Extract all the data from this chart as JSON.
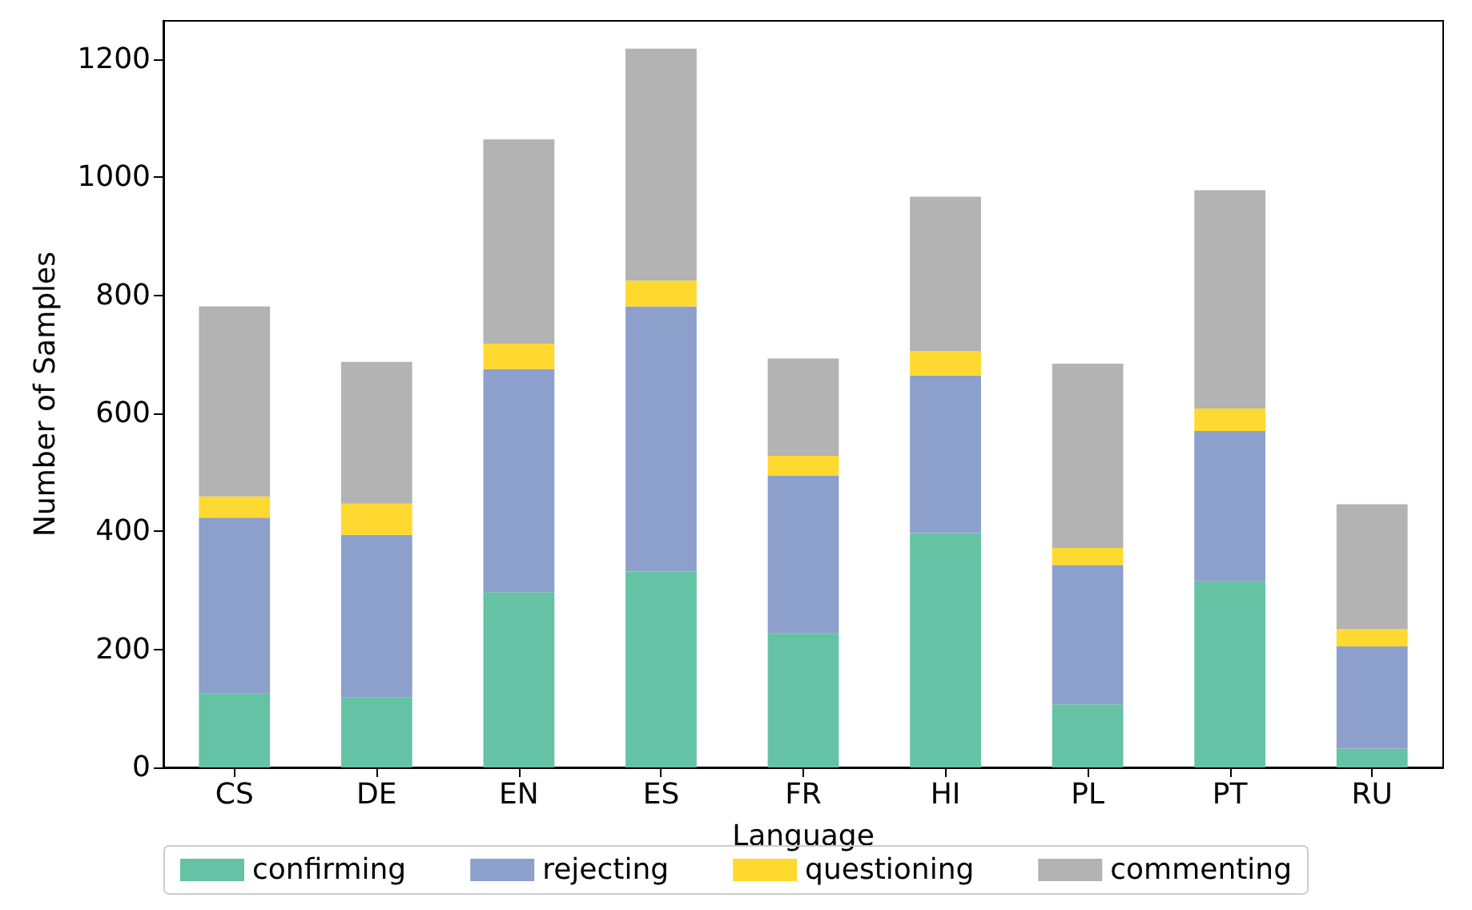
{
  "chart_data": {
    "type": "bar",
    "stacked": true,
    "xlabel": "Language",
    "ylabel": "Number of Samples",
    "categories": [
      "CS",
      "DE",
      "EN",
      "ES",
      "FR",
      "HI",
      "PL",
      "PT",
      "RU"
    ],
    "series": [
      {
        "name": "confirming",
        "color": "#66c2a5",
        "values": [
          126,
          119,
          297,
          332,
          227,
          397,
          107,
          316,
          32
        ]
      },
      {
        "name": "rejecting",
        "color": "#8da0cb",
        "values": [
          297,
          275,
          378,
          449,
          267,
          267,
          236,
          254,
          173
        ]
      },
      {
        "name": "questioning",
        "color": "#ffd92f",
        "values": [
          36,
          53,
          43,
          44,
          34,
          41,
          29,
          38,
          29
        ]
      },
      {
        "name": "commenting",
        "color": "#b3b3b3",
        "values": [
          322,
          240,
          346,
          393,
          165,
          262,
          312,
          370,
          212
        ]
      }
    ],
    "ylim": [
      0,
      1265
    ],
    "yticks": [
      0,
      200,
      400,
      600,
      800,
      1000,
      1200
    ],
    "grid": false,
    "legend": "bottom"
  }
}
